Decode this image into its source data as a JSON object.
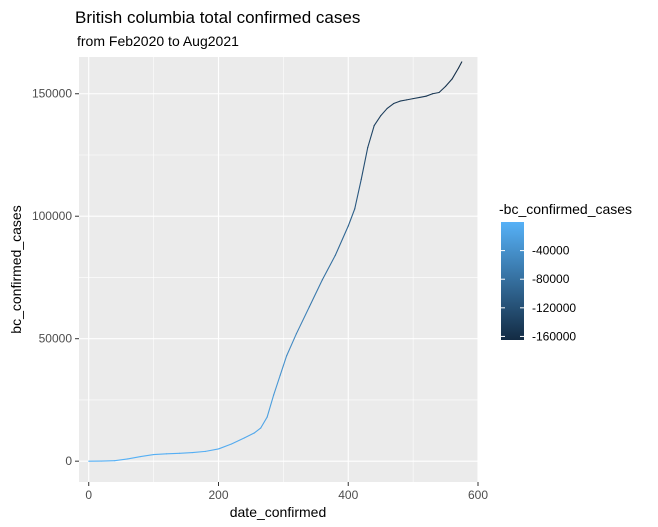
{
  "chart_data": {
    "type": "line",
    "title": "British columbia total confirmed cases",
    "subtitle": "from Feb2020 to Aug2021",
    "xlabel": "date_confirmed",
    "ylabel": "bc_confirmed_cases",
    "xlim": [
      -15,
      600
    ],
    "ylim": [
      -8500,
      165000
    ],
    "x_ticks": [
      0,
      200,
      400,
      600
    ],
    "x_tick_labels": [
      "0",
      "200",
      "400",
      "600"
    ],
    "y_ticks": [
      0,
      50000,
      100000,
      150000
    ],
    "y_tick_labels": [
      "0",
      "50000",
      "100000",
      "150000"
    ],
    "grid": true,
    "legend": {
      "title": "-bc_confirmed_cases",
      "position": "right",
      "type": "colorbar",
      "range": [
        -165000,
        -1
      ],
      "low_color": "#132B43",
      "high_color": "#56B1F7",
      "ticks": [
        -40000,
        -80000,
        -120000,
        -160000
      ],
      "tick_labels": [
        "-40000",
        "-80000",
        "-120000",
        "-160000"
      ]
    },
    "series": [
      {
        "x": [
          0,
          20,
          40,
          60,
          80,
          100,
          120,
          140,
          160,
          180,
          200,
          220,
          240,
          255,
          265,
          275,
          285,
          295,
          305,
          320,
          340,
          360,
          380,
          400,
          410,
          420,
          430,
          440,
          450,
          460,
          470,
          480,
          490,
          500,
          510,
          520,
          530,
          540,
          550,
          560,
          570,
          575
        ],
        "y": [
          0,
          50,
          200,
          900,
          1900,
          2700,
          3000,
          3200,
          3500,
          4000,
          5000,
          7000,
          9500,
          11500,
          13500,
          18000,
          27000,
          35000,
          43000,
          52000,
          63000,
          74000,
          84000,
          96000,
          103000,
          115000,
          128000,
          137000,
          141000,
          144000,
          146000,
          147000,
          147500,
          148000,
          148500,
          149000,
          150000,
          150500,
          153000,
          156000,
          160500,
          163000
        ]
      }
    ]
  }
}
